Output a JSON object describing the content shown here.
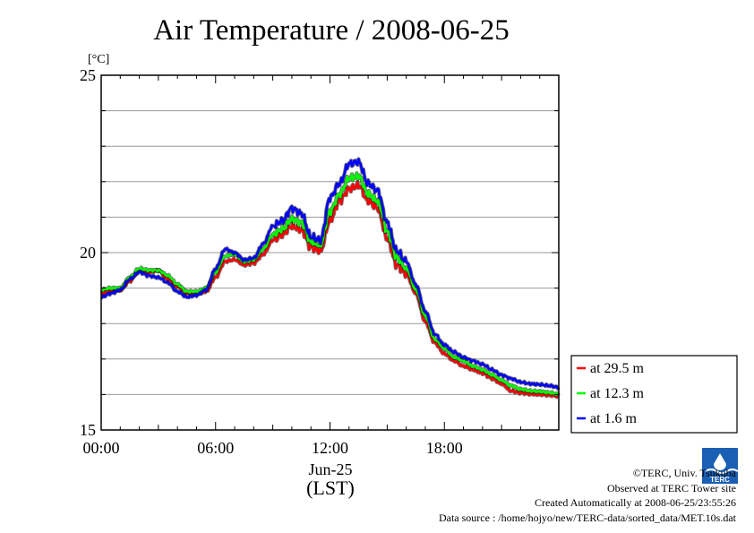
{
  "chart_data": {
    "type": "line",
    "title": "Air Temperature / 2008-06-25",
    "ylabel": "[°C]",
    "xlabel": "Jun-25",
    "xlabel_sub": "(LST)",
    "ylim": [
      15,
      25
    ],
    "xlim_hours": [
      0,
      24
    ],
    "y_ticks": [
      "15",
      "20",
      "25"
    ],
    "y_minor_step": 1,
    "x_ticks": [
      {
        "hour": 0,
        "label": "00:00"
      },
      {
        "hour": 6,
        "label": "06:00"
      },
      {
        "hour": 12,
        "label": "12:00"
      },
      {
        "hour": 18,
        "label": "18:00"
      }
    ],
    "grid": true,
    "legend_position": "right-bottom",
    "x_hours": [
      0,
      0.5,
      1,
      1.5,
      2,
      2.5,
      3,
      3.5,
      4,
      4.5,
      5,
      5.5,
      6,
      6.5,
      7,
      7.5,
      8,
      8.5,
      9,
      9.5,
      10,
      10.5,
      11,
      11.5,
      12,
      12.5,
      13,
      13.5,
      14,
      14.5,
      15,
      15.5,
      16,
      16.5,
      17,
      17.5,
      18,
      18.5,
      19,
      19.5,
      20,
      20.5,
      21,
      21.5,
      22,
      22.5,
      23,
      23.5,
      24
    ],
    "series": [
      {
        "name": "at 29.5 m",
        "color": "#ff0000",
        "values": [
          18.85,
          18.9,
          18.95,
          19.2,
          19.5,
          19.45,
          19.5,
          19.25,
          19.05,
          18.85,
          18.85,
          18.9,
          19.3,
          19.75,
          19.8,
          19.65,
          19.7,
          19.95,
          20.35,
          20.5,
          20.75,
          20.65,
          20.15,
          20.05,
          20.9,
          21.45,
          21.8,
          21.9,
          21.45,
          21.25,
          20.4,
          19.65,
          19.4,
          18.85,
          18.05,
          17.45,
          17.15,
          16.95,
          16.8,
          16.7,
          16.6,
          16.45,
          16.3,
          16.1,
          16.05,
          16.02,
          16.0,
          15.98,
          15.95
        ]
      },
      {
        "name": "at 12.3 m",
        "color": "#00ff00",
        "values": [
          18.95,
          19.0,
          19.0,
          19.3,
          19.55,
          19.5,
          19.5,
          19.35,
          19.1,
          18.9,
          18.9,
          19.0,
          19.45,
          19.9,
          19.95,
          19.75,
          19.8,
          20.1,
          20.5,
          20.65,
          20.95,
          20.85,
          20.3,
          20.2,
          21.15,
          21.65,
          22.1,
          22.15,
          21.65,
          21.45,
          20.6,
          19.85,
          19.55,
          18.95,
          18.2,
          17.55,
          17.3,
          17.05,
          16.95,
          16.8,
          16.7,
          16.55,
          16.4,
          16.25,
          16.15,
          16.1,
          16.08,
          16.05,
          16.0
        ]
      },
      {
        "name": "at 1.6 m",
        "color": "#0000ff",
        "values": [
          18.75,
          18.85,
          18.95,
          19.25,
          19.45,
          19.35,
          19.3,
          19.15,
          18.9,
          18.75,
          18.8,
          18.95,
          19.55,
          20.1,
          20.0,
          19.8,
          19.85,
          20.25,
          20.75,
          20.9,
          21.25,
          21.1,
          20.45,
          20.35,
          21.55,
          21.95,
          22.5,
          22.55,
          21.95,
          21.75,
          20.85,
          20.05,
          19.75,
          19.1,
          18.35,
          17.7,
          17.4,
          17.2,
          17.05,
          16.95,
          16.85,
          16.7,
          16.55,
          16.45,
          16.35,
          16.3,
          16.28,
          16.25,
          16.2
        ]
      }
    ]
  },
  "credits": {
    "copyright": "©TERC, Univ. Tsukuba",
    "observed": "Observed at TERC Tower site",
    "created": "Created Automatically at 2008-06-25/23:55:26",
    "source": "Data source : /home/hojyo/new/TERC-data/sorted_data/MET.10s.dat"
  },
  "logo": {
    "text": "TERC",
    "color": "#1a5fb4"
  }
}
